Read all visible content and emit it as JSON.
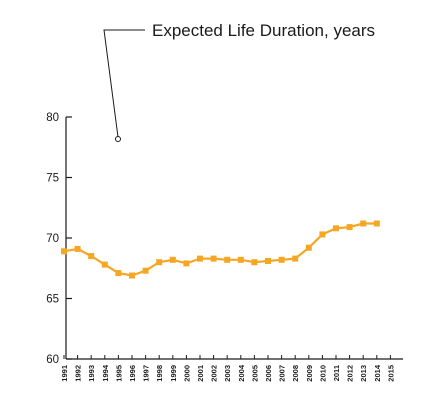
{
  "chart_data": {
    "type": "line",
    "title": "Expected Life Duration, years",
    "xlabel": "",
    "ylabel": "",
    "x": [
      "1991",
      "1992",
      "1993",
      "1994",
      "1995",
      "1996",
      "1997",
      "1998",
      "1999",
      "2000",
      "2001",
      "2002",
      "2003",
      "2004",
      "2005",
      "2006",
      "2007",
      "2008",
      "2009",
      "2010",
      "2011",
      "2012",
      "2013",
      "2014",
      "2015"
    ],
    "series": [
      {
        "values": [
          68.9,
          69.1,
          68.5,
          67.8,
          67.1,
          66.9,
          67.3,
          68.0,
          68.2,
          67.9,
          68.3,
          68.3,
          68.2,
          68.2,
          68.0,
          68.1,
          68.2,
          68.3,
          69.2,
          70.3,
          70.8,
          70.9,
          71.2,
          71.2,
          null
        ]
      }
    ],
    "ylim": [
      60,
      80
    ],
    "yticks": [
      60,
      65,
      70,
      75,
      80
    ],
    "grid": false,
    "line_color": "#f5a623",
    "axis_color": "#1a1a1a"
  }
}
